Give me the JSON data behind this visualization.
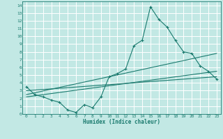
{
  "xlabel": "Humidex (Indice chaleur)",
  "bg_color": "#c2e8e4",
  "grid_color": "#ffffff",
  "line_color": "#1a7a6e",
  "xlim": [
    -0.5,
    23.5
  ],
  "ylim": [
    0,
    14.5
  ],
  "xticks": [
    0,
    1,
    2,
    3,
    4,
    5,
    6,
    7,
    8,
    9,
    10,
    11,
    12,
    13,
    14,
    15,
    16,
    17,
    18,
    19,
    20,
    21,
    22,
    23
  ],
  "yticks": [
    0,
    1,
    2,
    3,
    4,
    5,
    6,
    7,
    8,
    9,
    10,
    11,
    12,
    13,
    14
  ],
  "data_x": [
    0,
    1,
    2,
    3,
    4,
    5,
    6,
    7,
    8,
    9,
    10,
    11,
    12,
    13,
    14,
    15,
    16,
    17,
    18,
    19,
    20,
    21,
    22,
    23
  ],
  "data_y": [
    3.5,
    2.5,
    2.2,
    1.8,
    1.5,
    0.5,
    0.2,
    1.2,
    0.8,
    2.2,
    4.8,
    5.2,
    5.8,
    8.8,
    9.5,
    13.8,
    12.2,
    11.2,
    9.5,
    8.0,
    7.8,
    6.2,
    5.5,
    4.5
  ],
  "line1_x": [
    0,
    23
  ],
  "line1_y": [
    3.0,
    4.8
  ],
  "line2_x": [
    0,
    23
  ],
  "line2_y": [
    2.5,
    7.8
  ],
  "line3_x": [
    0,
    23
  ],
  "line3_y": [
    2.2,
    5.5
  ]
}
